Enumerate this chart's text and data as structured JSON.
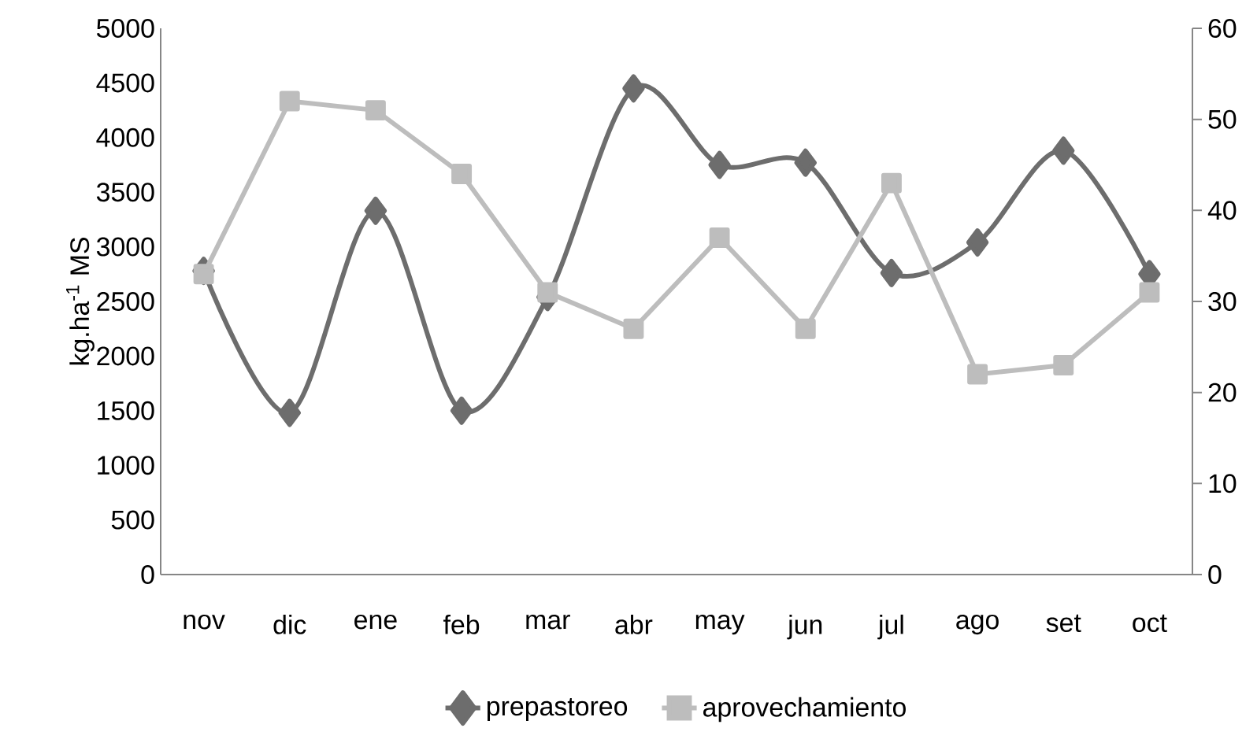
{
  "chart_data": {
    "type": "line",
    "ylabel": "kg.ha$^{-1}$ MS",
    "categories": [
      "nov",
      "dic",
      "ene",
      "feb",
      "mar",
      "abr",
      "may",
      "jun",
      "jul",
      "ago",
      "set",
      "oct"
    ],
    "series": [
      {
        "name": "prepastoreo",
        "color": "#6d6d6d",
        "marker": "diamond",
        "values": [
          2780,
          1480,
          3330,
          1500,
          2540,
          4450,
          3750,
          3770,
          2760,
          3040,
          3880,
          2750
        ]
      },
      {
        "name": "aprovechamiento",
        "color": "#bdbdbd",
        "marker": "square",
        "axis": "y2",
        "values": [
          33,
          52,
          51,
          44,
          31,
          27,
          37,
          27,
          43,
          22,
          23,
          31
        ]
      }
    ],
    "ylim": [
      0,
      5000
    ],
    "yticks": [
      0,
      500,
      1000,
      1500,
      2000,
      2500,
      3000,
      3500,
      4000,
      4500,
      5000
    ],
    "y2lim": [
      0,
      60
    ],
    "y2ticks": [
      0,
      10,
      20,
      30,
      40,
      50,
      60
    ],
    "grid": false,
    "legend": "bottom"
  }
}
